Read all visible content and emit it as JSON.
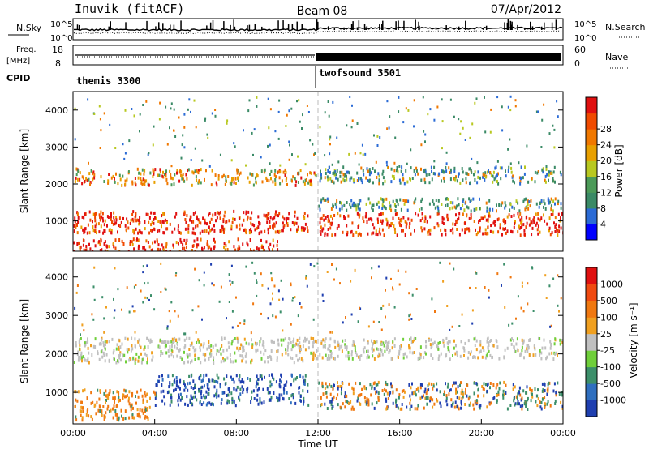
{
  "header": {
    "station": "Inuvik (fitACF)",
    "beam": "Beam 08",
    "date": "07/Apr/2012"
  },
  "top_panels": {
    "nsky_label": "N.Sky",
    "nsearch_label": "N.Search",
    "freq_label_line1": "Freq.",
    "freq_label_line2": "[MHz]",
    "nave_label": "Nave",
    "cpid_label": "CPID",
    "noise_ticks_left": [
      "10^5",
      "10^0"
    ],
    "noise_ticks_right": [
      "10^5",
      "10^0"
    ],
    "freq_ticks_left": [
      "18",
      "8"
    ],
    "nave_ticks_right": [
      "60",
      "0"
    ],
    "cpid_segments": [
      {
        "name": "themis 3300",
        "start_h": 0.0,
        "end_h": 12.0
      },
      {
        "name": "twofsound 3501",
        "start_h": 12.0,
        "end_h": 24.0
      }
    ]
  },
  "chart_data": [
    {
      "type": "heatmap",
      "name": "power",
      "ylabel": "Slant Range [km]",
      "xlim": [
        0,
        24
      ],
      "ylim": [
        180,
        4500
      ],
      "yticks": [
        "1000",
        "2000",
        "3000",
        "4000"
      ],
      "colorbar": {
        "label": "Power [dB]",
        "ticks": [
          "4",
          "8",
          "12",
          "16",
          "20",
          "24",
          "28"
        ],
        "colors": [
          "#0000ff",
          "#2b6bd6",
          "#3a8a66",
          "#4b9a58",
          "#b8c820",
          "#e8a000",
          "#f07800",
          "#f04a00",
          "#e01010"
        ]
      },
      "echo_bands": [
        {
          "start_h": 0.0,
          "end_h": 12.0,
          "range_km": [
            2000,
            2450
          ],
          "level": "mid"
        },
        {
          "start_h": 0.0,
          "end_h": 11.5,
          "range_km": [
            700,
            1300
          ],
          "level": "high"
        },
        {
          "start_h": 0.0,
          "end_h": 10.0,
          "range_km": [
            200,
            550
          ],
          "level": "high"
        },
        {
          "start_h": 12.0,
          "end_h": 24.0,
          "range_km": [
            2050,
            2500
          ],
          "level": "low"
        },
        {
          "start_h": 12.0,
          "end_h": 24.0,
          "range_km": [
            650,
            1250
          ],
          "level": "high"
        },
        {
          "start_h": 12.0,
          "end_h": 24.0,
          "range_km": [
            1300,
            1650
          ],
          "level": "low"
        }
      ]
    },
    {
      "type": "heatmap",
      "name": "velocity",
      "ylabel": "Slant Range [km]",
      "xlabel": "Time UT",
      "xlim": [
        0,
        24
      ],
      "ylim": [
        180,
        4500
      ],
      "xticks": [
        "00:00",
        "04:00",
        "08:00",
        "12:00",
        "16:00",
        "20:00",
        "00:00"
      ],
      "yticks": [
        "1000",
        "2000",
        "3000",
        "4000"
      ],
      "colorbar": {
        "label": "Velocity [m s⁻¹]",
        "ticks": [
          "1000",
          "500",
          "100",
          "25",
          "-25",
          "-100",
          "-500",
          "-1000"
        ],
        "colors": [
          "#1f3fb0",
          "#2f6fbf",
          "#3c8f6a",
          "#6fcf3a",
          "#c0c0c0",
          "#f0a020",
          "#f07810",
          "#f04a10",
          "#e01010"
        ]
      },
      "echo_bands": [
        {
          "start_h": 0.0,
          "end_h": 12.0,
          "range_km": [
            1800,
            2450
          ],
          "level": "ground"
        },
        {
          "start_h": 4.0,
          "end_h": 11.5,
          "range_km": [
            700,
            1500
          ],
          "level": "toward"
        },
        {
          "start_h": 0.0,
          "end_h": 4.0,
          "range_km": [
            300,
            1100
          ],
          "level": "away"
        },
        {
          "start_h": 12.0,
          "end_h": 24.0,
          "range_km": [
            600,
            1300
          ],
          "level": "mixed"
        },
        {
          "start_h": 12.0,
          "end_h": 24.0,
          "range_km": [
            1900,
            2450
          ],
          "level": "ground"
        }
      ]
    }
  ]
}
